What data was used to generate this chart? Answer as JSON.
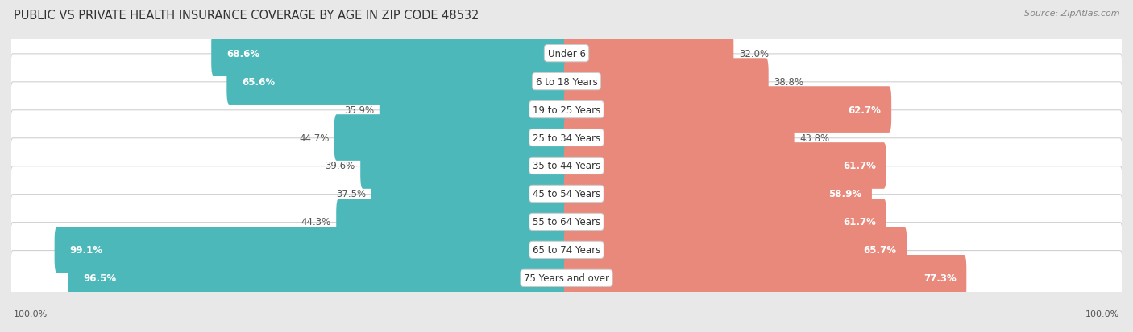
{
  "title": "PUBLIC VS PRIVATE HEALTH INSURANCE COVERAGE BY AGE IN ZIP CODE 48532",
  "source": "Source: ZipAtlas.com",
  "categories": [
    "Under 6",
    "6 to 18 Years",
    "19 to 25 Years",
    "25 to 34 Years",
    "35 to 44 Years",
    "45 to 54 Years",
    "55 to 64 Years",
    "65 to 74 Years",
    "75 Years and over"
  ],
  "public_values": [
    68.6,
    65.6,
    35.9,
    44.7,
    39.6,
    37.5,
    44.3,
    99.1,
    96.5
  ],
  "private_values": [
    32.0,
    38.8,
    62.7,
    43.8,
    61.7,
    58.9,
    61.7,
    65.7,
    77.3
  ],
  "public_color": "#4db8ba",
  "private_color": "#e8897c",
  "bg_color": "#e8e8e8",
  "row_bg_color": "#ffffff",
  "max_value": 100.0,
  "title_fontsize": 10.5,
  "label_fontsize": 8.5,
  "category_fontsize": 8.5,
  "legend_fontsize": 9,
  "source_fontsize": 8,
  "pub_inside_threshold": 55,
  "priv_inside_threshold": 55
}
